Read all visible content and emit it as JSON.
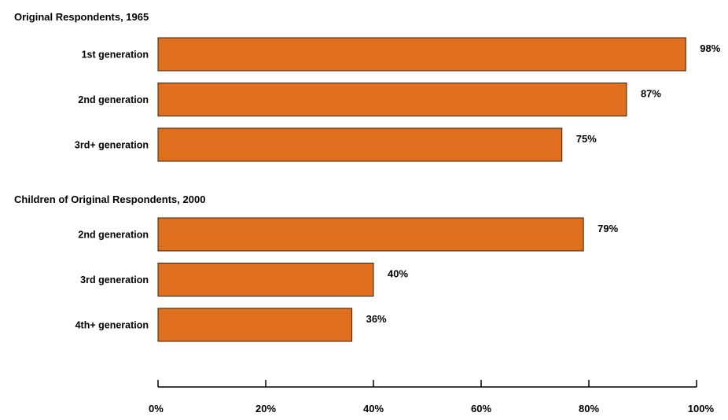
{
  "chart_data": {
    "type": "bar",
    "orientation": "horizontal",
    "xlim": [
      0,
      100
    ],
    "x_ticks": [
      {
        "value": 0,
        "label": "0%"
      },
      {
        "value": 20,
        "label": "20%"
      },
      {
        "value": 40,
        "label": "40%"
      },
      {
        "value": 60,
        "label": "60%"
      },
      {
        "value": 80,
        "label": "80%"
      },
      {
        "value": 100,
        "label": "100%"
      }
    ],
    "grid": false,
    "legend": "none",
    "bar_color": "#E07020",
    "bar_stroke": "#3A1F0A",
    "groups": [
      {
        "title": "Original Respondents, 1965",
        "categories": [
          "1st generation",
          "2nd generation",
          "3rd+ generation"
        ],
        "values": [
          98,
          87,
          75
        ],
        "value_labels": [
          "98%",
          "87%",
          "75%"
        ]
      },
      {
        "title": "Children of Original Respondents, 2000",
        "categories": [
          "2nd generation",
          "3rd generation",
          "4th+ generation"
        ],
        "values": [
          79,
          40,
          36
        ],
        "value_labels": [
          "79%",
          "40%",
          "36%"
        ]
      }
    ]
  }
}
